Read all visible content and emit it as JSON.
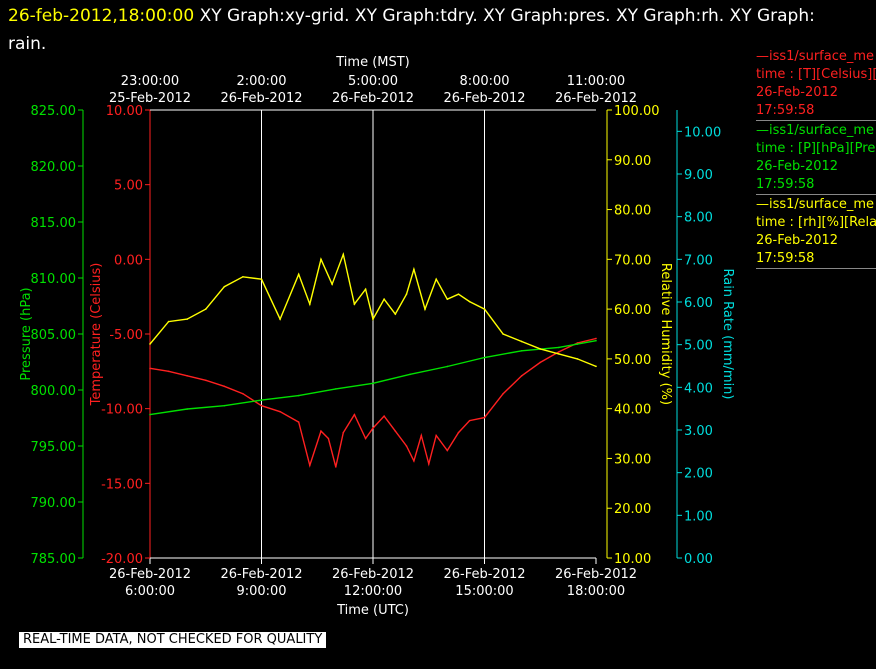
{
  "header": {
    "timestamp": "26-feb-2012,18:00:00",
    "titles": "XY Graph:xy-grid.  XY Graph:tdry.  XY Graph:pres.  XY Graph:rh.  XY Graph: rain."
  },
  "colors": {
    "background": "#000000",
    "temperature": "#ff2020",
    "pressure": "#00e000",
    "humidity": "#ffff00",
    "rain": "#00dddd",
    "grid": "#ffffff"
  },
  "legend": [
    {
      "line1": "—iss1/surface_me",
      "line2": "time : [T][Celsius][T",
      "line3": "26-Feb-2012",
      "line4": "17:59:58",
      "color": "#ff2020"
    },
    {
      "line1": "—iss1/surface_me",
      "line2": "time : [P][hPa][Pres",
      "line3": "26-Feb-2012",
      "line4": "17:59:58",
      "color": "#00e000"
    },
    {
      "line1": "—iss1/surface_me",
      "line2": "time : [rh][%][Relati",
      "line3": "26-Feb-2012",
      "line4": "17:59:58",
      "color": "#ffff00"
    }
  ],
  "disclaimer": "REAL-TIME DATA, NOT CHECKED FOR QUALITY",
  "chart_data": {
    "type": "line",
    "xlabel": "Time (UTC)",
    "x2label": "Time (MST)",
    "x_range_hours": [
      6.0,
      18.0
    ],
    "grid": true,
    "bottom_ticks": [
      {
        "hour": 6,
        "date": "26-Feb-2012",
        "time": "6:00:00"
      },
      {
        "hour": 9,
        "date": "26-Feb-2012",
        "time": "9:00:00"
      },
      {
        "hour": 12,
        "date": "26-Feb-2012",
        "time": "12:00:00"
      },
      {
        "hour": 15,
        "date": "26-Feb-2012",
        "time": "15:00:00"
      },
      {
        "hour": 18,
        "date": "26-Feb-2012",
        "time": "18:00:00"
      }
    ],
    "top_ticks": [
      {
        "hour": 6,
        "date": "25-Feb-2012",
        "time": "23:00:00"
      },
      {
        "hour": 9,
        "date": "26-Feb-2012",
        "time": "2:00:00"
      },
      {
        "hour": 12,
        "date": "26-Feb-2012",
        "time": "5:00:00"
      },
      {
        "hour": 15,
        "date": "26-Feb-2012",
        "time": "8:00:00"
      },
      {
        "hour": 18,
        "date": "26-Feb-2012",
        "time": "11:00:00"
      }
    ],
    "axes": {
      "pressure": {
        "label": "Pressure (hPa)",
        "range": [
          785.0,
          825.0
        ],
        "ticks": [
          "785.00",
          "790.00",
          "795.00",
          "800.00",
          "805.00",
          "810.00",
          "815.00",
          "820.00",
          "825.00"
        ]
      },
      "temperature": {
        "label": "Temperature (Celsius)",
        "range": [
          -20.0,
          10.0
        ],
        "ticks": [
          "-20.00",
          "-15.00",
          "-10.00",
          "-5.00",
          "0.00",
          "5.00",
          "10.00"
        ]
      },
      "humidity": {
        "label": "Relative Humidity (%)",
        "range": [
          10.0,
          100.0
        ],
        "ticks": [
          "10.00",
          "20.00",
          "30.00",
          "40.00",
          "50.00",
          "60.00",
          "70.00",
          "80.00",
          "90.00",
          "100.00"
        ]
      },
      "rain": {
        "label": "Rain Rate (mm/min)",
        "range": [
          0.0,
          10.5
        ],
        "ticks": [
          "0.00",
          "1.00",
          "2.00",
          "3.00",
          "4.00",
          "5.00",
          "6.00",
          "7.00",
          "8.00",
          "9.00",
          "10.00"
        ]
      }
    },
    "series": [
      {
        "name": "iss1/surface_me [T][Celsius]",
        "axis": "temperature",
        "x": [
          6.0,
          6.5,
          7.0,
          7.5,
          8.0,
          8.5,
          9.0,
          9.5,
          10.0,
          10.3,
          10.6,
          10.8,
          11.0,
          11.2,
          11.5,
          11.8,
          12.0,
          12.3,
          12.6,
          12.9,
          13.1,
          13.3,
          13.5,
          13.7,
          14.0,
          14.3,
          14.6,
          15.0,
          15.5,
          16.0,
          16.5,
          17.0,
          17.5,
          18.0
        ],
        "y": [
          -7.3,
          -7.5,
          -7.8,
          -8.1,
          -8.5,
          -9.0,
          -9.8,
          -10.2,
          -10.9,
          -13.8,
          -11.5,
          -12.0,
          -13.9,
          -11.6,
          -10.4,
          -12.0,
          -11.3,
          -10.5,
          -11.5,
          -12.5,
          -13.5,
          -11.8,
          -13.7,
          -11.8,
          -12.8,
          -11.6,
          -10.8,
          -10.6,
          -9.0,
          -7.8,
          -6.9,
          -6.2,
          -5.6,
          -5.3
        ]
      },
      {
        "name": "iss1/surface_me [P][hPa]",
        "axis": "pressure",
        "x": [
          6.0,
          7.0,
          8.0,
          9.0,
          10.0,
          11.0,
          12.0,
          13.0,
          14.0,
          15.0,
          16.0,
          17.0,
          17.5,
          18.0
        ],
        "y": [
          797.8,
          798.3,
          798.6,
          799.1,
          799.5,
          800.1,
          800.6,
          801.4,
          802.1,
          802.9,
          803.5,
          803.8,
          804.1,
          804.4
        ]
      },
      {
        "name": "iss1/surface_me [rh][%]",
        "axis": "humidity",
        "x": [
          6.0,
          6.5,
          7.0,
          7.5,
          8.0,
          8.5,
          9.0,
          9.5,
          10.0,
          10.3,
          10.6,
          10.9,
          11.2,
          11.5,
          11.8,
          12.0,
          12.3,
          12.6,
          12.9,
          13.1,
          13.4,
          13.7,
          14.0,
          14.3,
          14.6,
          15.0,
          15.5,
          16.0,
          16.5,
          17.0,
          17.5,
          18.0
        ],
        "y": [
          53.0,
          57.5,
          58.0,
          60.0,
          64.5,
          66.5,
          66.0,
          58.0,
          67.0,
          61.0,
          70.0,
          65.0,
          71.0,
          61.0,
          64.0,
          58.0,
          62.0,
          59.0,
          63.0,
          68.0,
          60.0,
          66.0,
          62.0,
          63.0,
          61.5,
          60.0,
          55.0,
          53.5,
          52.0,
          51.0,
          50.0,
          48.5
        ]
      }
    ]
  }
}
